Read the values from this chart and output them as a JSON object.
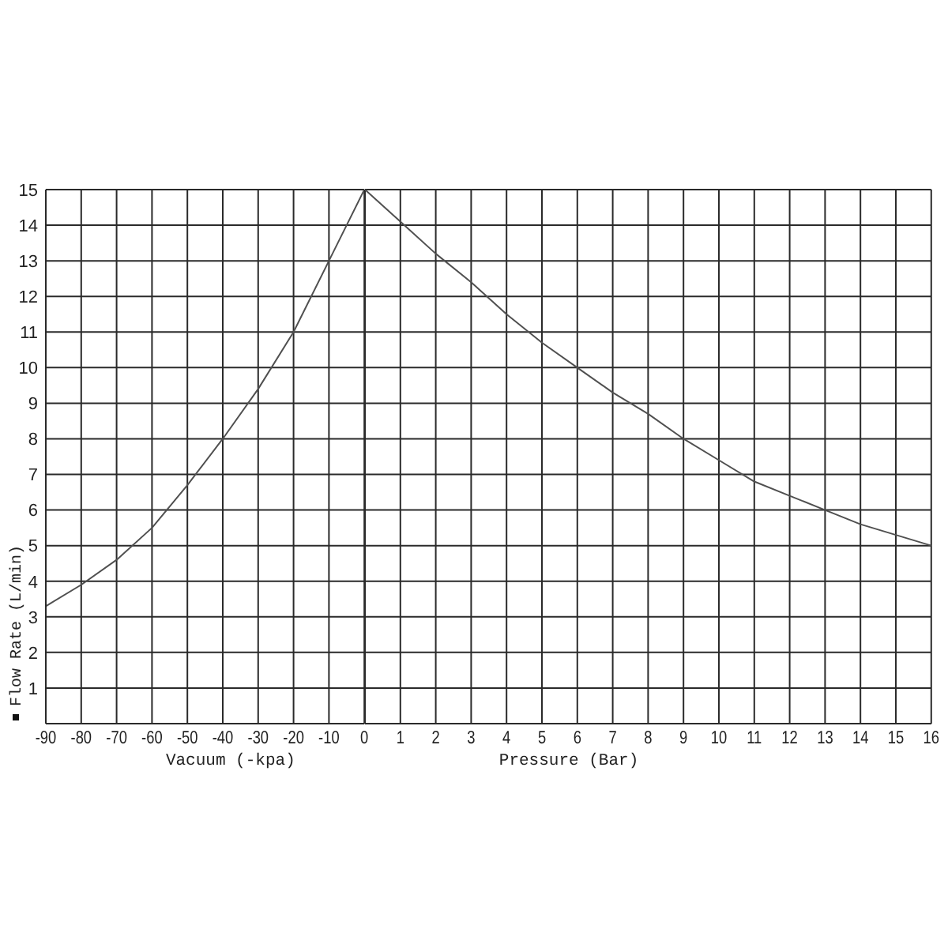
{
  "chart_data": [
    {
      "type": "line",
      "xlabel": "Vacuum (-kpa)",
      "ylabel": "Flow Rate (L/min)",
      "x": [
        -90,
        -80,
        -70,
        -60,
        -50,
        -40,
        -30,
        -20,
        -10,
        0
      ],
      "values": [
        3.3,
        3.9,
        4.6,
        5.5,
        6.7,
        8.0,
        9.4,
        11.0,
        13.0,
        15.0
      ],
      "color": "#505050",
      "xlim": [
        -90,
        0
      ],
      "xticks": [
        -90,
        -80,
        -70,
        -60,
        -50,
        -40,
        -30,
        -20,
        -10,
        0
      ],
      "ylim": [
        0,
        15
      ],
      "yticks": [
        {
          "value": 0,
          "label": null
        },
        1,
        2,
        3,
        4,
        5,
        6,
        7,
        8,
        9,
        10,
        11,
        12,
        13,
        14,
        15
      ],
      "grid": true,
      "marker": "none",
      "line_style": "solid"
    },
    {
      "type": "line",
      "xlabel": "Pressure (Bar)",
      "x": [
        0,
        1,
        2,
        3,
        4,
        5,
        6,
        7,
        8,
        9,
        10,
        11,
        12,
        13,
        14,
        15,
        16
      ],
      "values": [
        15.0,
        14.1,
        13.2,
        12.4,
        11.5,
        10.7,
        10.0,
        9.3,
        8.7,
        8.0,
        7.4,
        6.8,
        6.4,
        6.0,
        5.6,
        5.3,
        5.0
      ],
      "color": "#505050",
      "xlim": [
        0,
        16
      ],
      "xticks": [
        {
          "value": 0,
          "label": null
        },
        1,
        2,
        3,
        4,
        5,
        6,
        7,
        8,
        9,
        10,
        11,
        12,
        13,
        14,
        15,
        16
      ],
      "ylim": [
        0,
        15
      ],
      "yticks": [
        {
          "value": 0,
          "label": null
        },
        1,
        2,
        3,
        4,
        5,
        6,
        7,
        8,
        9,
        10,
        11,
        12,
        13,
        14,
        15
      ],
      "tick_labels": "x",
      "grid": true,
      "marker": "none",
      "line_style": "solid"
    }
  ]
}
